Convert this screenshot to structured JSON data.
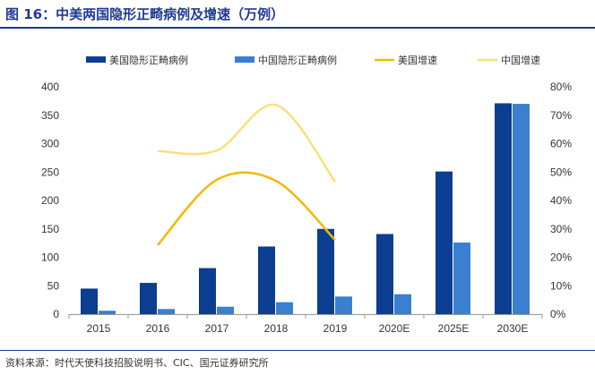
{
  "figure": {
    "title": "图 16：中美两国隐形正畸病例及增速（万例）",
    "source": "资料来源：时代天使科技招股说明书、CIC、国元证券研究所"
  },
  "chart_data": {
    "type": "bar",
    "categories": [
      "2015",
      "2016",
      "2017",
      "2018",
      "2019",
      "2020E",
      "2025E",
      "2030E"
    ],
    "series": [
      {
        "name": "美国隐形正畸病例",
        "kind": "bar",
        "axis": "left",
        "color": "#0b3d91",
        "values": [
          45,
          55,
          81,
          119,
          150,
          141,
          251,
          371
        ]
      },
      {
        "name": "中国隐形正畸病例",
        "kind": "bar",
        "axis": "left",
        "color": "#3a7fd0",
        "values": [
          6,
          9,
          13,
          21,
          31,
          35,
          126,
          370
        ]
      },
      {
        "name": "美国增速",
        "kind": "line",
        "axis": "right",
        "color": "#f5b800",
        "values": [
          null,
          0.243,
          0.473,
          0.469,
          0.261,
          null,
          null,
          null
        ]
      },
      {
        "name": "中国增速",
        "kind": "line",
        "axis": "right",
        "color": "#fae07a",
        "values": [
          null,
          0.574,
          0.576,
          0.736,
          0.466,
          null,
          null,
          null
        ]
      }
    ],
    "ylim": [
      0,
      400
    ],
    "yticks": [
      "0",
      "50",
      "100",
      "150",
      "200",
      "250",
      "300",
      "350",
      "400"
    ],
    "y2lim": [
      0,
      0.8
    ],
    "y2ticks": [
      "0%",
      "10%",
      "20%",
      "30%",
      "40%",
      "50%",
      "60%",
      "70%",
      "80%"
    ],
    "legend_position": "top",
    "grid": false
  }
}
